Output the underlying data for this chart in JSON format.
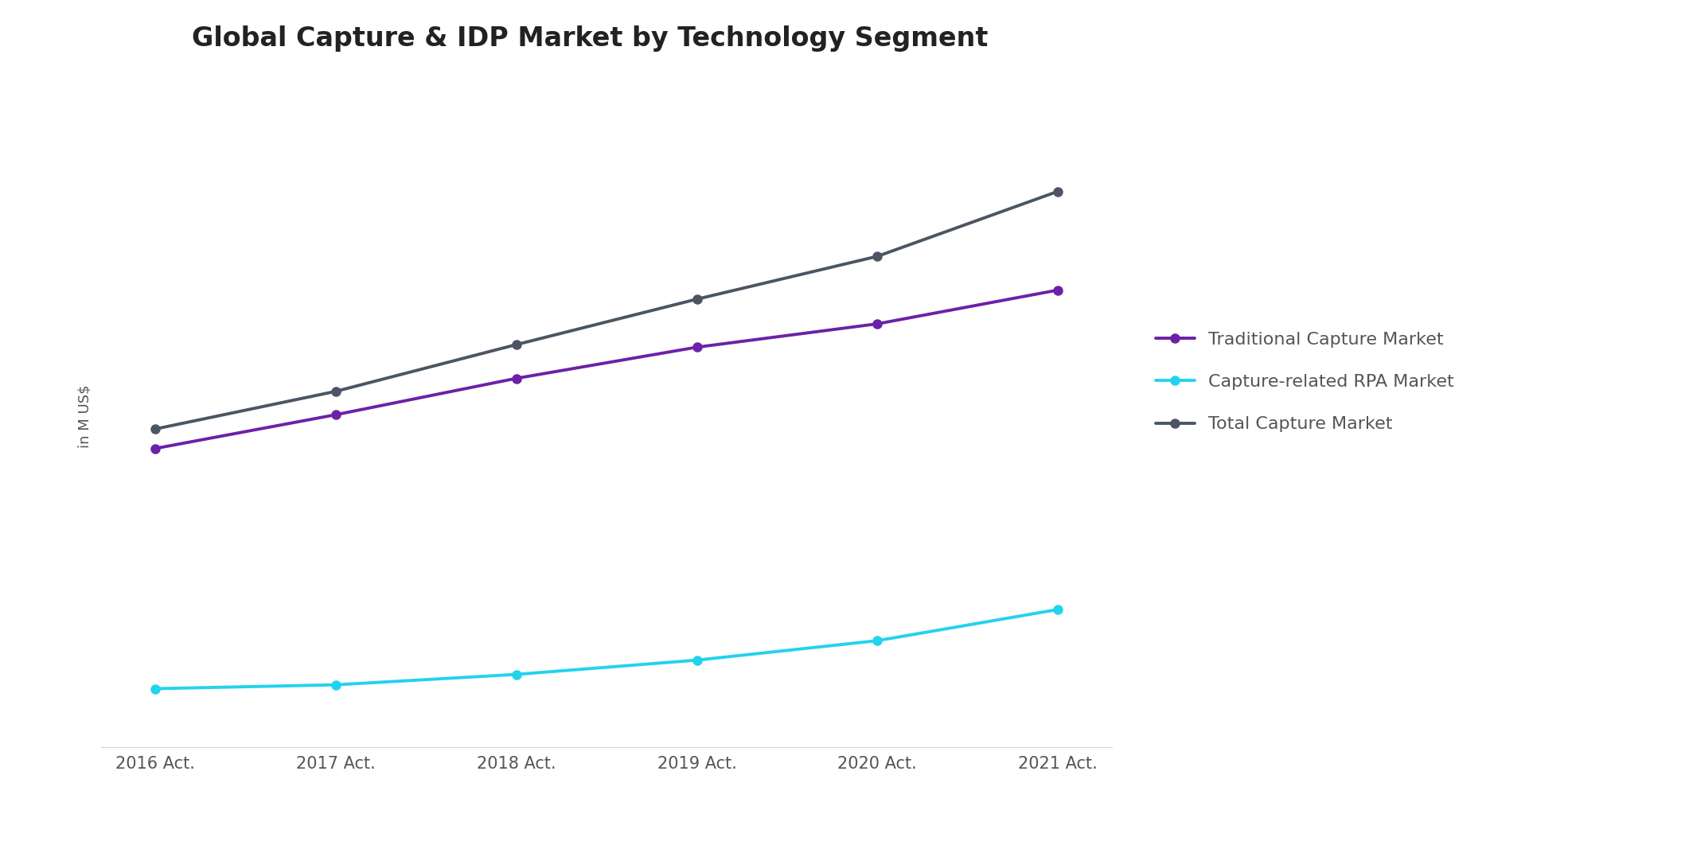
{
  "title": "Global Capture & IDP Market by Technology Segment",
  "ylabel": "in M US$",
  "x_labels": [
    "2016 Act.",
    "2017 Act.",
    "2018 Act.",
    "2019 Act.",
    "2020 Act.",
    "2021 Act."
  ],
  "x_values": [
    0,
    1,
    2,
    3,
    4,
    5
  ],
  "traditional_capture": [
    1000,
    1130,
    1270,
    1390,
    1480,
    1610
  ],
  "rpa_market": [
    75,
    90,
    130,
    185,
    260,
    380
  ],
  "total_capture": [
    1075,
    1220,
    1400,
    1575,
    1740,
    1990
  ],
  "color_traditional": "#6b21a8",
  "color_rpa": "#22d3ee",
  "color_total": "#4b5563",
  "background_color": "#ffffff",
  "grid_color": "#d1d5db",
  "title_fontsize": 24,
  "ylabel_fontsize": 13,
  "tick_fontsize": 15,
  "legend_fontsize": 16,
  "line_width": 2.8,
  "marker_size": 8,
  "figsize": [
    21.17,
    10.67
  ],
  "dpi": 100,
  "legend_labels": [
    "Traditional Capture Market",
    "Capture-related RPA Market",
    "Total Capture Market"
  ]
}
